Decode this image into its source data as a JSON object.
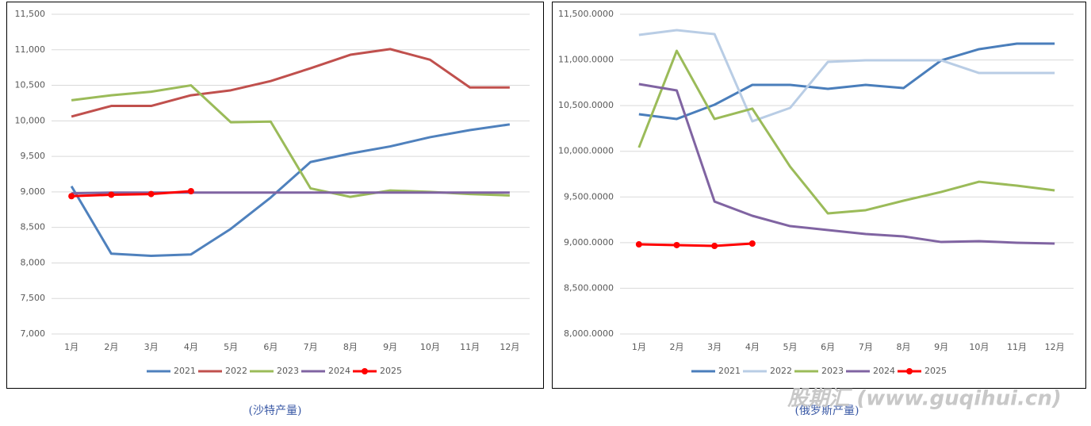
{
  "chart_data": [
    {
      "type": "line",
      "categories": [
        "1月",
        "2月",
        "3月",
        "4月",
        "5月",
        "6月",
        "7月",
        "8月",
        "9月",
        "10月",
        "11月",
        "12月"
      ],
      "ylim": [
        7000,
        11500
      ],
      "yticks": [
        {
          "value": 7000,
          "label": "7,000"
        },
        {
          "value": 7500,
          "label": "7,500"
        },
        {
          "value": 8000,
          "label": "8,000"
        },
        {
          "value": 8500,
          "label": "8,500"
        },
        {
          "value": 9000,
          "label": "9,000"
        },
        {
          "value": 9500,
          "label": "9,500"
        },
        {
          "value": 10000,
          "label": "10,000"
        },
        {
          "value": 10500,
          "label": "10,500"
        },
        {
          "value": 11000,
          "label": "11,000"
        },
        {
          "value": 11500,
          "label": "11,500"
        }
      ],
      "grid": true,
      "legend": "bottom",
      "series": [
        {
          "name": "2021",
          "color": "#4f81bd",
          "values": [
            9080,
            8130,
            8100,
            8120,
            8480,
            8920,
            9420,
            9540,
            9640,
            9770,
            9870,
            9950
          ]
        },
        {
          "name": "2022",
          "color": "#c0504d",
          "values": [
            10060,
            10210,
            10210,
            10360,
            10430,
            10560,
            10740,
            10930,
            11010,
            10860,
            10470,
            10470
          ]
        },
        {
          "name": "2023",
          "color": "#9bbb59",
          "values": [
            10290,
            10360,
            10410,
            10500,
            9980,
            9990,
            9050,
            8930,
            9020,
            9000,
            8970,
            8950
          ]
        },
        {
          "name": "2024",
          "color": "#8064a2",
          "values": [
            8980,
            8990,
            8990,
            8990,
            8990,
            8990,
            8990,
            8990,
            8990,
            8990,
            8990,
            8990
          ]
        },
        {
          "name": "2025",
          "color": "#ff0000",
          "markers": true,
          "values": [
            8940,
            8960,
            8970,
            9010,
            null,
            null,
            null,
            null,
            null,
            null,
            null,
            null
          ]
        }
      ]
    },
    {
      "type": "line",
      "categories": [
        "1月",
        "2月",
        "3月",
        "4月",
        "5月",
        "6月",
        "7月",
        "8月",
        "9月",
        "10月",
        "11月",
        "12月"
      ],
      "ylim": [
        8000,
        11500
      ],
      "yticks": [
        {
          "value": 8000,
          "label": "8,000.0000"
        },
        {
          "value": 8500,
          "label": "8,500.0000"
        },
        {
          "value": 9000,
          "label": "9,000.0000"
        },
        {
          "value": 9500,
          "label": "9,500.0000"
        },
        {
          "value": 10000,
          "label": "10,000.0000"
        },
        {
          "value": 10500,
          "label": "10,500.0000"
        },
        {
          "value": 11000,
          "label": "11,000.0000"
        },
        {
          "value": 11500,
          "label": "11,500.0000"
        }
      ],
      "grid": true,
      "legend": "bottom",
      "series": [
        {
          "name": "2021",
          "color": "#4a7ebb",
          "values": [
            10406,
            10354,
            10510,
            10727,
            10727,
            10684,
            10727,
            10692,
            10996,
            11118,
            11179,
            11179
          ]
        },
        {
          "name": "2022",
          "color": "#b9cde5",
          "values": [
            11274,
            11326,
            11283,
            10328,
            10475,
            10979,
            10996,
            10996,
            10996,
            10857,
            10857,
            10857
          ]
        },
        {
          "name": "2023",
          "color": "#9bbb59",
          "values": [
            10041,
            11100,
            10354,
            10467,
            9832,
            9320,
            9355,
            9459,
            9555,
            9667,
            9624,
            9572
          ]
        },
        {
          "name": "2024",
          "color": "#8064a2",
          "values": [
            10736,
            10666,
            9450,
            9294,
            9181,
            9138,
            9094,
            9068,
            9007,
            9016,
            8999,
            8990
          ]
        },
        {
          "name": "2025",
          "color": "#ff0000",
          "markers": true,
          "values": [
            8981,
            8973,
            8964,
            8990,
            null,
            null,
            null,
            null,
            null,
            null,
            null,
            null
          ]
        }
      ]
    }
  ],
  "captions": [
    "(沙特产量)",
    "(俄罗斯产量)"
  ],
  "watermark": "股期汇 (www.guqihui.cn)"
}
